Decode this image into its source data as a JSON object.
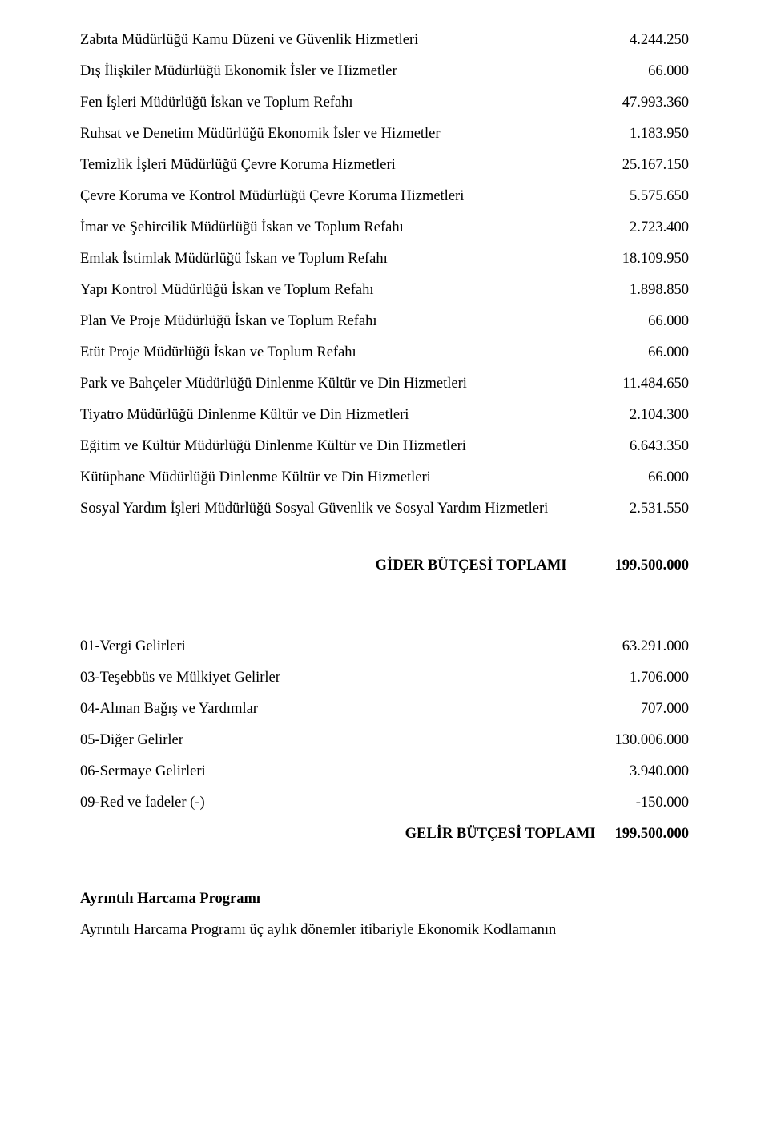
{
  "expense_rows": [
    {
      "label": "Zabıta Müdürlüğü Kamu Düzeni ve Güvenlik Hizmetleri",
      "value": "4.244.250"
    },
    {
      "label": "Dış İlişkiler Müdürlüğü Ekonomik İsler ve Hizmetler",
      "value": "66.000"
    },
    {
      "label": "Fen İşleri Müdürlüğü İskan ve Toplum Refahı",
      "value": "47.993.360"
    },
    {
      "label": "Ruhsat ve Denetim Müdürlüğü Ekonomik İsler ve Hizmetler",
      "value": "1.183.950"
    },
    {
      "label": "Temizlik İşleri Müdürlüğü Çevre Koruma Hizmetleri",
      "value": "25.167.150"
    },
    {
      "label": "Çevre Koruma ve Kontrol Müdürlüğü Çevre Koruma Hizmetleri",
      "value": "5.575.650"
    },
    {
      "label": "İmar ve Şehircilik Müdürlüğü İskan ve Toplum Refahı",
      "value": "2.723.400"
    },
    {
      "label": "Emlak İstimlak Müdürlüğü İskan ve Toplum Refahı",
      "value": "18.109.950"
    },
    {
      "label": "Yapı Kontrol Müdürlüğü  İskan ve Toplum Refahı",
      "value": "1.898.850"
    },
    {
      "label": "Plan Ve Proje Müdürlüğü  İskan ve Toplum Refahı",
      "value": "66.000"
    },
    {
      "label": "Etüt Proje Müdürlüğü İskan ve Toplum Refahı",
      "value": "66.000"
    },
    {
      "label": "Park ve Bahçeler Müdürlüğü Dinlenme Kültür ve Din Hizmetleri",
      "value": "11.484.650"
    },
    {
      "label": "Tiyatro Müdürlüğü Dinlenme Kültür ve Din Hizmetleri",
      "value": "2.104.300"
    },
    {
      "label": "Eğitim ve Kültür Müdürlüğü Dinlenme Kültür ve Din Hizmetleri",
      "value": "6.643.350"
    },
    {
      "label": "Kütüphane Müdürlüğü Dinlenme Kültür ve Din Hizmetleri",
      "value": "66.000"
    },
    {
      "label": "Sosyal Yardım İşleri Müdürlüğü Sosyal Güvenlik ve Sosyal Yardım Hizmetleri",
      "value": "2.531.550"
    }
  ],
  "expense_total": {
    "label": "GİDER BÜTÇESİ TOPLAMI",
    "value": "199.500.000"
  },
  "revenue_rows": [
    {
      "label": "01-Vergi Gelirleri",
      "value": "63.291.000"
    },
    {
      "label": "03-Teşebbüs ve Mülkiyet Gelirler",
      "value": "1.706.000"
    },
    {
      "label": "04-Alınan Bağış ve Yardımlar",
      "value": "707.000"
    },
    {
      "label": "05-Diğer Gelirler",
      "value": "130.006.000"
    },
    {
      "label": "06-Sermaye Gelirleri",
      "value": "3.940.000"
    },
    {
      "label": "09-Red ve İadeler (-)",
      "value": "-150.000"
    }
  ],
  "revenue_total": {
    "label": "GELİR BÜTÇESİ TOPLAMI",
    "value": "199.500.000"
  },
  "section": {
    "heading": "Ayrıntılı Harcama Programı",
    "body": "Ayrıntılı Harcama Programı üç aylık dönemler itibariyle Ekonomik Kodlamanın"
  }
}
